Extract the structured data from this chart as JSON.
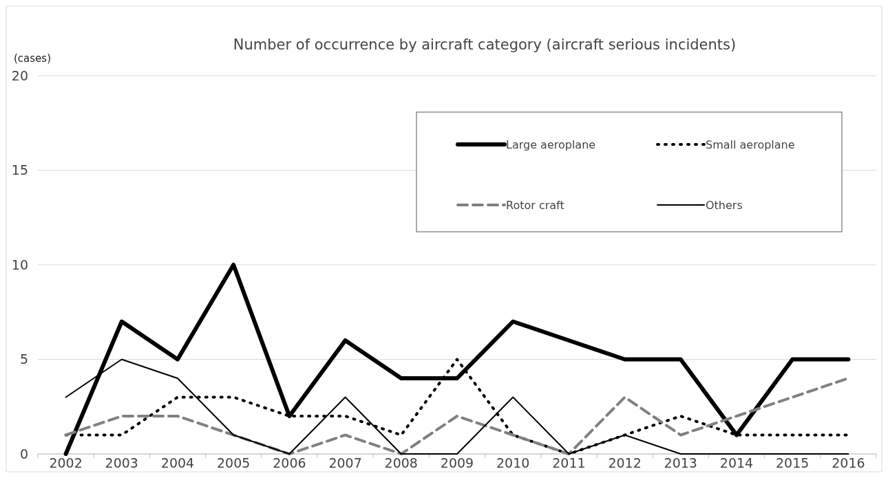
{
  "chart_data": {
    "type": "line",
    "title": "Number of occurrence by aircraft category (aircraft serious incidents)",
    "ylabel": "(cases)",
    "categories": [
      "2002",
      "2003",
      "2004",
      "2005",
      "2006",
      "2007",
      "2008",
      "2009",
      "2010",
      "2011",
      "2012",
      "2013",
      "2014",
      "2015",
      "2016"
    ],
    "ylim": [
      0,
      20
    ],
    "yticks": [
      0,
      5,
      10,
      15,
      20
    ],
    "grid": "y",
    "legend": "top right",
    "series": [
      {
        "name": "Large aeroplane",
        "color": "#000000",
        "line_style": "solid",
        "values": [
          0,
          7,
          5,
          10,
          2,
          6,
          4,
          4,
          7,
          6,
          5,
          5,
          1,
          5,
          5
        ]
      },
      {
        "name": "Small aeroplane",
        "color": "#000000",
        "line_style": "dotted",
        "values": [
          1,
          1,
          3,
          3,
          2,
          2,
          1,
          5,
          1,
          0,
          1,
          2,
          1,
          1,
          1
        ]
      },
      {
        "name": "Rotor craft",
        "color": "#808080",
        "line_style": "dashed",
        "values": [
          1,
          2,
          2,
          1,
          0,
          1,
          0,
          2,
          1,
          0,
          3,
          1,
          2,
          3,
          4
        ]
      },
      {
        "name": "Others",
        "color": "#000000",
        "line_style": "solid",
        "values": [
          3,
          5,
          4,
          1,
          0,
          3,
          0,
          0,
          3,
          0,
          1,
          0,
          0,
          0,
          0
        ]
      }
    ]
  }
}
